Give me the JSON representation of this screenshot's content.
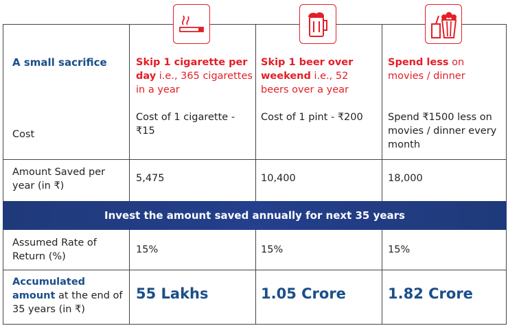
{
  "sacrifice_label": "A small sacrifice",
  "cost_label": "Cost",
  "options": [
    {
      "title_bold": "Skip 1 cigarette per day",
      "title_rest": "i.e., 365 cigarettes in a year",
      "cost": "Cost of 1 cigarette - ₹15",
      "amount_saved": "5,475",
      "rate": "15%",
      "accumulated": "55 Lakhs"
    },
    {
      "title_bold": "Skip 1 beer over weekend",
      "title_rest": "i.e., 52 beers over a year",
      "cost": "Cost of 1 pint - ₹200",
      "amount_saved": "10,400",
      "rate": "15%",
      "accumulated": "1.05 Crore"
    },
    {
      "title_bold": "Spend less",
      "title_rest": "on movies / dinner",
      "cost": "Spend ₹1500 less on movies / dinner every month",
      "amount_saved": "18,000",
      "rate": "15%",
      "accumulated": "1.82 Crore"
    }
  ],
  "amount_saved_label": "Amount Saved per year (in ₹)",
  "banner": "Invest the amount saved annually for next 35 years",
  "rate_label": "Assumed Rate of Return (%)",
  "accumulated_label_bold": "Accumulated amount",
  "accumulated_label_rest": "at the end of 35 years (in ₹)"
}
